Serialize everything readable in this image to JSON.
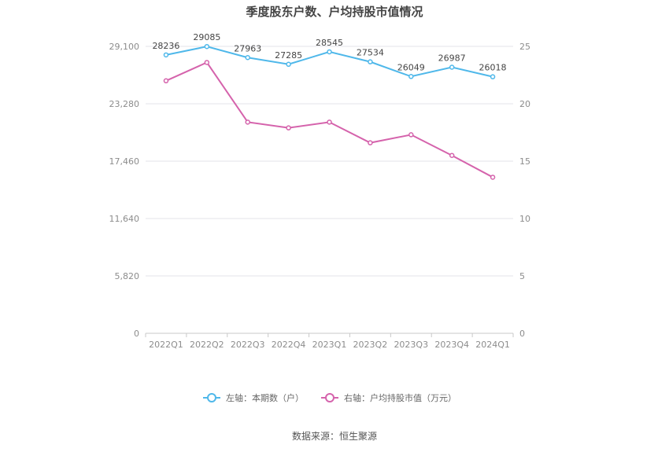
{
  "title": "季度股东户数、户均持股市值情况",
  "source_label": "数据来源：恒生聚源",
  "chart_data": {
    "type": "line",
    "title": "季度股东户数、户均持股市值情况",
    "categories": [
      "2022Q1",
      "2022Q2",
      "2022Q3",
      "2022Q4",
      "2023Q1",
      "2023Q2",
      "2023Q3",
      "2023Q4",
      "2024Q1"
    ],
    "left_axis": {
      "ticks": [
        "0",
        "5,820",
        "11,640",
        "17,460",
        "23,280",
        "29,100"
      ],
      "ylim": [
        0,
        29100
      ]
    },
    "right_axis": {
      "ticks": [
        "0",
        "5",
        "10",
        "15",
        "20",
        "25"
      ],
      "ylim": [
        0,
        25
      ]
    },
    "series": [
      {
        "name": "左轴：本期数（户）",
        "axis": "left",
        "color": "#4fb8ea",
        "values": [
          28236,
          29085,
          27963,
          27285,
          28545,
          27534,
          26049,
          26987,
          26018
        ],
        "labels": [
          "28236",
          "29085",
          "27963",
          "27285",
          "28545",
          "27534",
          "26049",
          "26987",
          "26018"
        ]
      },
      {
        "name": "右轴：户均持股市值（万元）",
        "axis": "right",
        "color": "#d563ac",
        "values": [
          22.0,
          23.6,
          18.4,
          17.9,
          18.4,
          16.6,
          17.3,
          15.5,
          13.6
        ]
      }
    ],
    "grid": true,
    "legend_position": "bottom-center"
  }
}
